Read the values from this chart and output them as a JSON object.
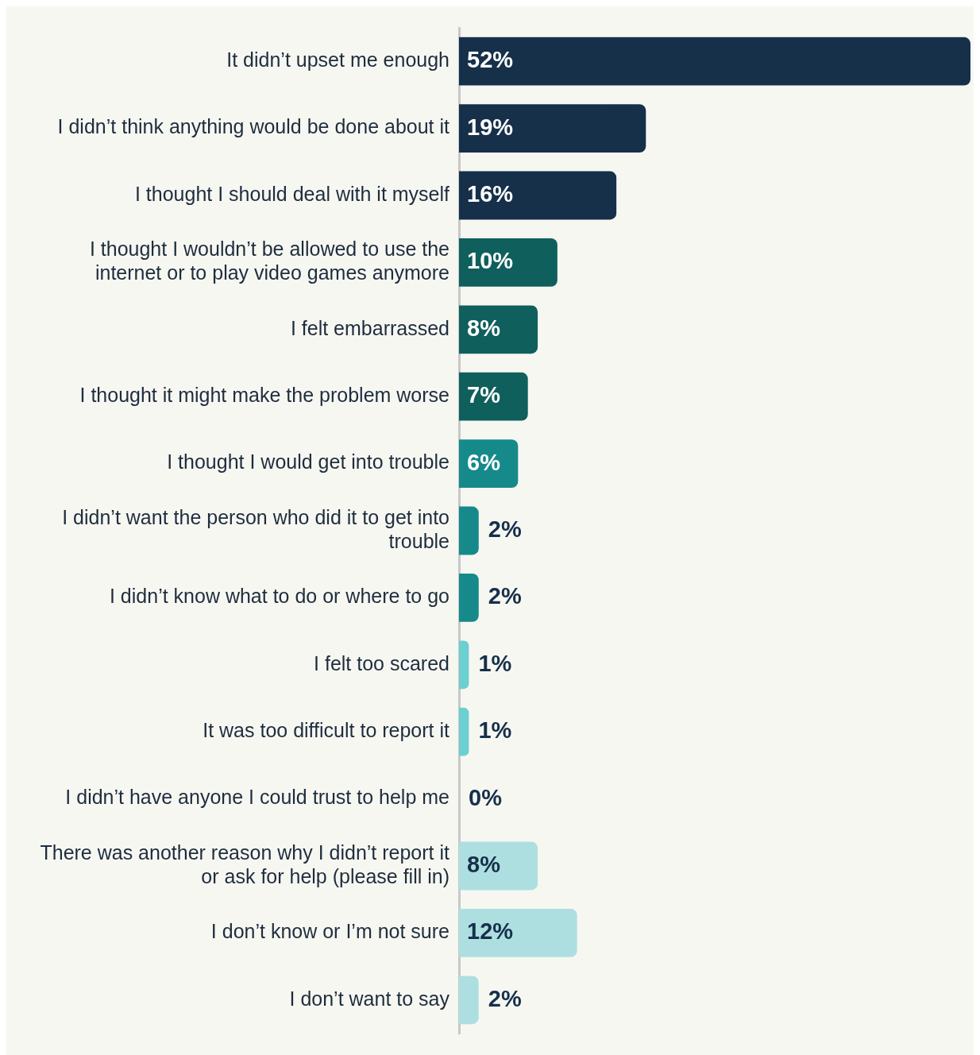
{
  "chart_data": {
    "type": "bar",
    "orientation": "horizontal",
    "categories": [
      "It didn’t upset me enough",
      "I didn’t think anything would be done about it",
      "I thought I should deal with it myself",
      "I thought I wouldn’t be allowed to use the internet or to play video games anymore",
      "I felt embarrassed",
      "I thought it might make the problem worse",
      "I thought I would get into trouble",
      "I didn’t want the person who did it to get into trouble",
      "I didn’t know what to do or where to go",
      "I felt too scared",
      "It was too difficult to report it",
      "I didn’t have anyone I could trust to help me",
      "There was another reason why I didn’t report it or ask for help (please fill in)",
      "I don’t know or I’m not sure",
      "I don’t want to say"
    ],
    "values": [
      52,
      19,
      16,
      10,
      8,
      7,
      6,
      2,
      2,
      1,
      1,
      0,
      8,
      12,
      2
    ],
    "colors": [
      "#16304a",
      "#16304a",
      "#16304a",
      "#0f5f5c",
      "#0f5f5c",
      "#0f5f5c",
      "#168a8a",
      "#168a8a",
      "#168a8a",
      "#6ccfd0",
      "#6ccfd0",
      "#6ccfd0",
      "#aedfe0",
      "#aedfe0",
      "#aedfe0"
    ],
    "value_labels": [
      "52%",
      "19%",
      "16%",
      "10%",
      "8%",
      "7%",
      "6%",
      "2%",
      "2%",
      "1%",
      "1%",
      "0%",
      "8%",
      "12%",
      "2%"
    ],
    "tick_labels": "y",
    "grid": false,
    "legend": false
  }
}
